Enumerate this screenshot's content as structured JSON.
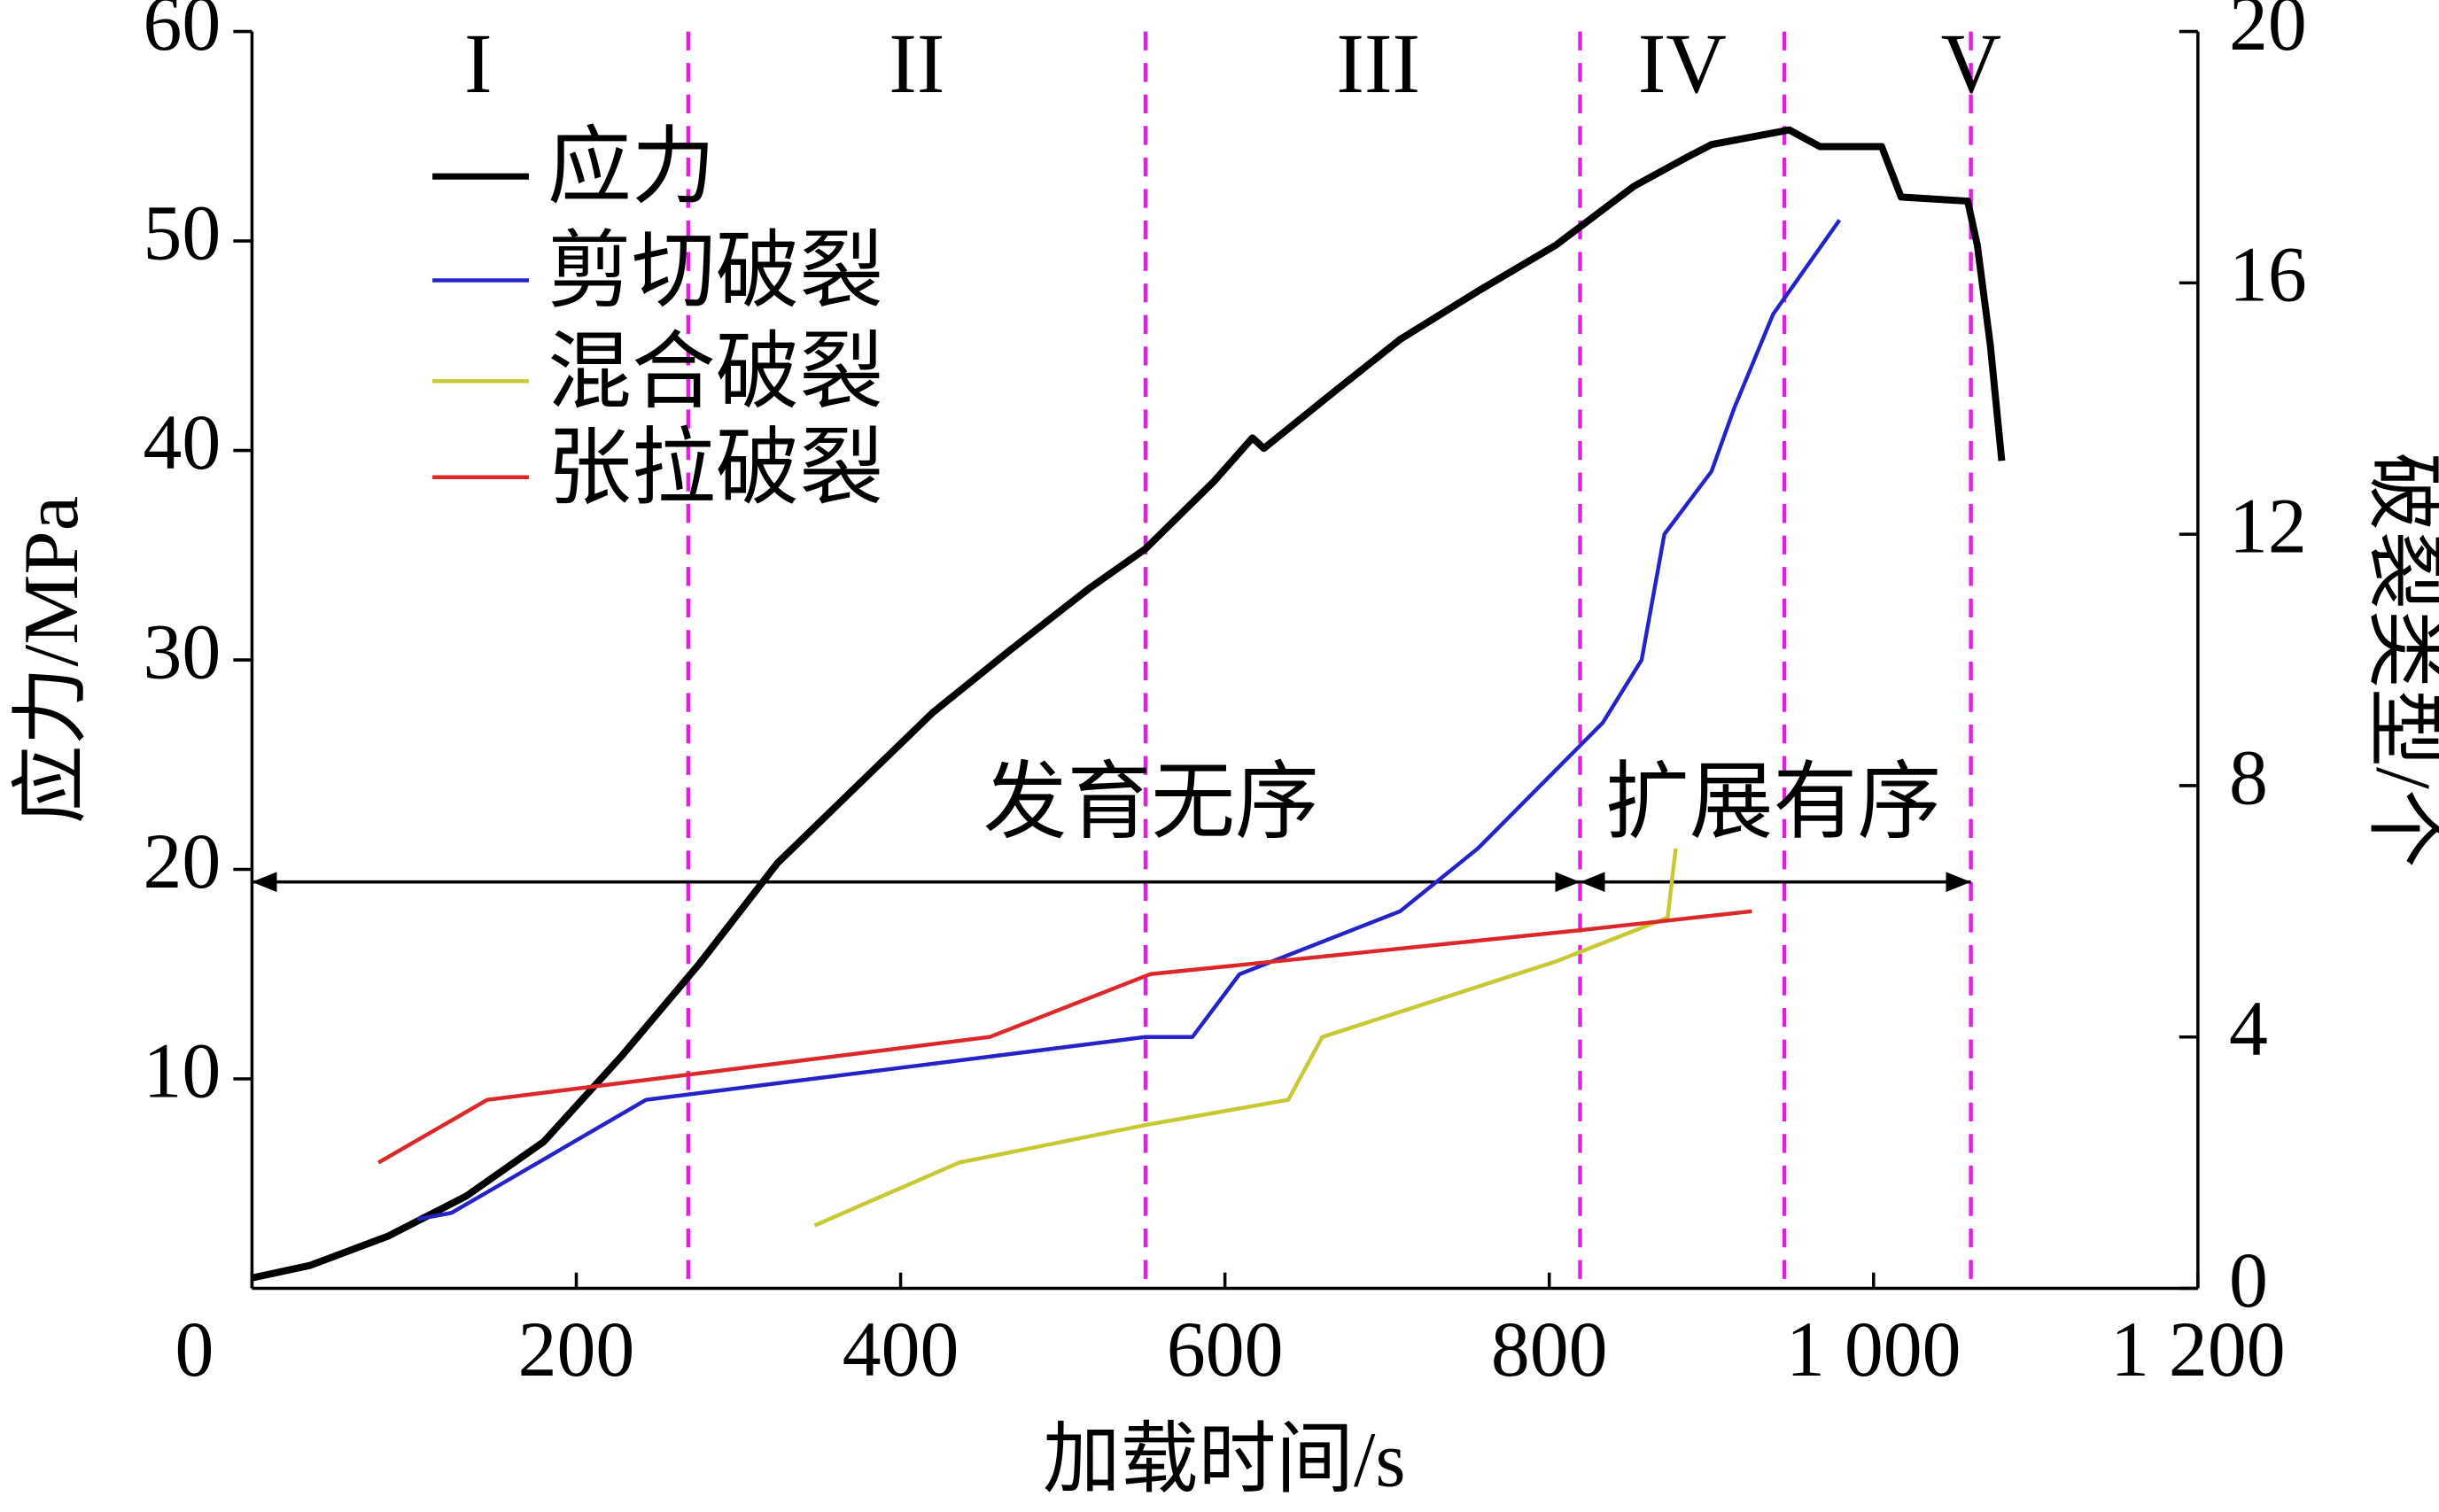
{
  "chart_data": {
    "type": "line",
    "x_label": "加载时间/s",
    "y_label": "应力/MPa",
    "y2_label": "破裂类型/个",
    "xlim": [
      0,
      1200
    ],
    "xticks": [
      0,
      200,
      400,
      600,
      800,
      {
        "value": 1000,
        "label": "1 000"
      },
      {
        "value": 1200,
        "label": "1 200"
      }
    ],
    "ylim": [
      0,
      60
    ],
    "yticks": [
      10,
      20,
      30,
      40,
      50,
      60
    ],
    "y2lim": [
      0,
      20
    ],
    "y2ticks": [
      0,
      4,
      8,
      12,
      16,
      20
    ],
    "stage_labels": [
      "I",
      "II",
      "III",
      "IV",
      "V"
    ],
    "stage_boundaries": [
      269,
      551,
      819,
      945,
      1060
    ],
    "phase_labels": [
      "发育无序",
      "扩展有序"
    ],
    "phase_arrow_y": 19.4,
    "series": [
      {
        "name": "应力",
        "color": "#000000",
        "axis": "y",
        "x": [
          0,
          36,
          84,
          132,
          180,
          228,
          276,
          324,
          372,
          420,
          468,
          516,
          551,
          593,
          617,
          624,
          669,
          708,
          756,
          804,
          852,
          885,
          900,
          948,
          967,
          1005,
          1017,
          1058,
          1064,
          1072,
          1079
        ],
        "values": [
          0.5,
          1.1,
          2.5,
          4.4,
          7.0,
          11.1,
          15.5,
          20.3,
          23.9,
          27.5,
          30.5,
          33.4,
          35.3,
          38.5,
          40.6,
          40.1,
          42.9,
          45.3,
          47.6,
          49.8,
          52.6,
          54.0,
          54.6,
          55.3,
          54.5,
          54.5,
          52.1,
          51.9,
          49.8,
          45.0,
          39.5
        ]
      },
      {
        "name": "剪切破裂",
        "color": "#2323c8",
        "axis": "y2",
        "x": [
          102,
          123,
          153,
          243,
          551,
          580,
          609,
          708,
          756,
          833,
          857,
          871,
          900,
          914,
          938,
          979
        ],
        "values": [
          1.1,
          1.2,
          1.65,
          3.0,
          4.0,
          4.0,
          5.0,
          6.0,
          7.0,
          9.0,
          10.0,
          12.0,
          13.0,
          14.0,
          15.5,
          17.0
        ]
      },
      {
        "name": "混合破裂",
        "color": "#c8c832",
        "axis": "y2",
        "x": [
          347,
          436,
          551,
          639,
          660,
          804,
          873,
          878
        ],
        "values": [
          1.0,
          2.0,
          2.6,
          3.0,
          4.0,
          5.2,
          5.9,
          7.0
        ]
      },
      {
        "name": "张拉破裂",
        "color": "#dc2828",
        "axis": "y2",
        "x": [
          78,
          145,
          455,
          554,
          819,
          925
        ],
        "values": [
          2.0,
          3.0,
          4.0,
          5.0,
          5.7,
          6.0
        ]
      }
    ]
  }
}
